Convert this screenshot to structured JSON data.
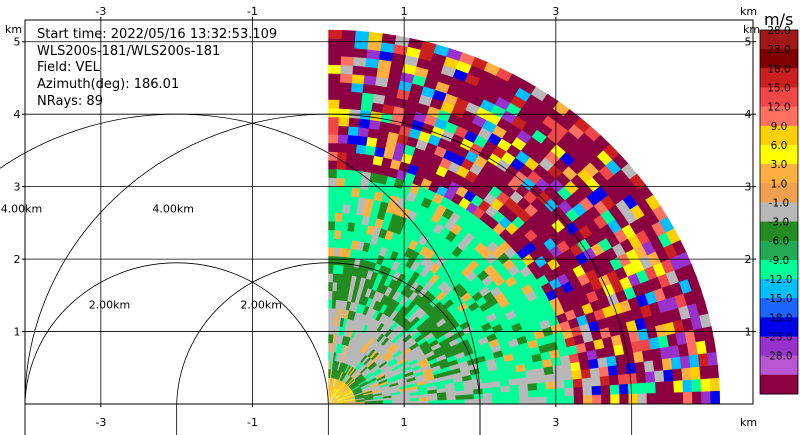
{
  "info": {
    "start_time": "Start time: 2022/05/16 13:32:53.109",
    "instrument": "WLS200s-181/WLS200s-181",
    "field": "Field: VEL",
    "azimuth": "Azimuth(deg): 186.01",
    "nrays": "NRays: 89"
  },
  "chart_data": {
    "type": "heatmap",
    "kind": "radar sector (PPI) of radial velocity",
    "x_axis": {
      "unit": "km",
      "ticks": [
        "-3",
        "-1",
        "1",
        "3"
      ],
      "range": [
        -4.0,
        5.6
      ]
    },
    "y_axis": {
      "unit": "km",
      "ticks": [
        "1",
        "2",
        "3",
        "4",
        "5"
      ],
      "range": [
        0.0,
        5.3
      ]
    },
    "radar_origin_km": [
      0.0,
      0.0
    ],
    "sector_deg": [
      0,
      90
    ],
    "max_range_km": 5.1,
    "range_rings": [
      {
        "center_km": [
          -2.0,
          0.0
        ],
        "radius_km": 2.0,
        "label": "2.00km"
      },
      {
        "center_km": [
          -2.0,
          0.0
        ],
        "radius_km": 4.0,
        "label": "4.00km"
      },
      {
        "center_km": [
          0.0,
          0.0
        ],
        "radius_km": 2.0,
        "label": "2.00km"
      },
      {
        "center_km": [
          0.0,
          0.0
        ],
        "radius_km": 4.0,
        "label": "4.00km"
      }
    ],
    "grid": true,
    "colorbar": {
      "title": "m/s",
      "bins": [
        {
          "label": "28.0",
          "color": "#a01818"
        },
        {
          "label": "23.0",
          "color": "#800000"
        },
        {
          "label": "18.0",
          "color": "#cc2020"
        },
        {
          "label": "15.0",
          "color": "#f04848"
        },
        {
          "label": "12.0",
          "color": "#ff7060"
        },
        {
          "label": "9.0",
          "color": "#ffd000"
        },
        {
          "label": "6.0",
          "color": "#ffff00"
        },
        {
          "label": "3.0",
          "color": "#ffb040"
        },
        {
          "label": "1.0",
          "color": "#f0a050"
        },
        {
          "label": "-1.0",
          "color": "#b8b8b8"
        },
        {
          "label": "-3.0",
          "color": "#228b22"
        },
        {
          "label": "-6.0",
          "color": "#22aa55"
        },
        {
          "label": "-9.0",
          "color": "#00ff99"
        },
        {
          "label": "-12.0",
          "color": "#00bfff"
        },
        {
          "label": "-15.0",
          "color": "#1e64ff"
        },
        {
          "label": "-18.0",
          "color": "#0000ee"
        },
        {
          "label": "-23.0",
          "color": "#9932cc"
        },
        {
          "label": "-28.0",
          "color": "#ba55d3"
        },
        {
          "label": "",
          "color": "#8b0040"
        }
      ]
    },
    "bands": [
      {
        "r_km": [
          0.0,
          0.25
        ],
        "dominant": "#ffd000",
        "mix": [
          "#ffff00",
          "#b8b8b8",
          "#ffb040"
        ]
      },
      {
        "r_km": [
          0.25,
          0.6
        ],
        "dominant": "#228b22",
        "mix": [
          "#b8b8b8",
          "#00ff99",
          "#ffb040"
        ]
      },
      {
        "r_km": [
          0.6,
          1.4
        ],
        "dominant": "#b8b8b8",
        "mix": [
          "#228b22",
          "#ffb040",
          "#00ff99"
        ]
      },
      {
        "r_km": [
          1.4,
          2.0
        ],
        "dominant": "#228b22",
        "mix": [
          "#b8b8b8",
          "#00ff99"
        ]
      },
      {
        "r_km": [
          2.0,
          3.2
        ],
        "dominant": "#00ff99",
        "mix": [
          "#228b22",
          "#b8b8b8",
          "#ffb040"
        ]
      },
      {
        "r_km": [
          3.2,
          5.1
        ],
        "dominant": "#8b0040",
        "mix": [
          "#cc2020",
          "#f04848",
          "#ffd000",
          "#00bfff",
          "#ffff00",
          "#ffb040",
          "#00ff99",
          "#0000ee",
          "#9932cc",
          "#ff7060",
          "#b8b8b8"
        ]
      }
    ]
  }
}
